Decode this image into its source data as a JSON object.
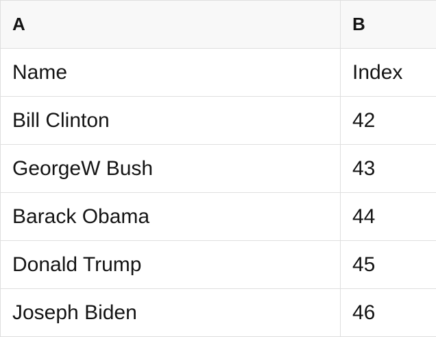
{
  "table": {
    "column_headers": [
      {
        "label": "A"
      },
      {
        "label": "B"
      }
    ],
    "rows": [
      {
        "a": "Name",
        "b": "Index"
      },
      {
        "a": "Bill Clinton",
        "b": "42"
      },
      {
        "a": "GeorgeW Bush",
        "b": "43"
      },
      {
        "a": "Barack Obama",
        "b": "44"
      },
      {
        "a": "Donald Trump",
        "b": "45"
      },
      {
        "a": "Joseph Biden",
        "b": "46"
      }
    ],
    "colors": {
      "header_bg": "#f8f8f8",
      "cell_bg": "#ffffff",
      "border": "#dfdfdf",
      "text": "#141414"
    }
  }
}
